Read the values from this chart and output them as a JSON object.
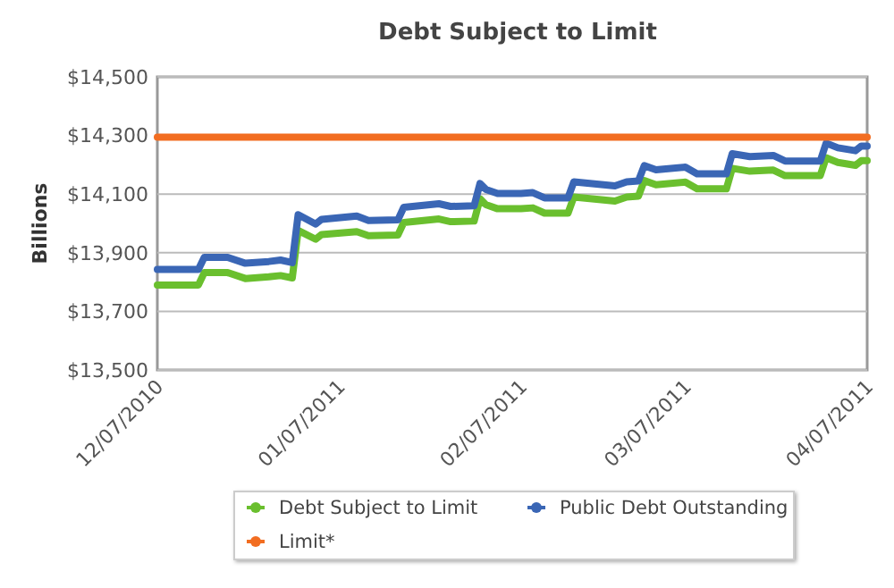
{
  "chart_data": {
    "type": "line",
    "title": "Debt Subject to Limit",
    "ylabel": "Billions",
    "xlim": [
      "2010-12-07",
      "2011-04-07"
    ],
    "xticks": [
      {
        "value": "2010-12-07",
        "label": "12/07/2010"
      },
      {
        "value": "2011-01-07",
        "label": "01/07/2011"
      },
      {
        "value": "2011-02-07",
        "label": "02/07/2011"
      },
      {
        "value": "2011-03-07",
        "label": "03/07/2011"
      },
      {
        "value": "2011-04-07",
        "label": "04/07/2011"
      }
    ],
    "ylim": [
      13500,
      14500
    ],
    "yticks": [
      {
        "value": 13500,
        "label": "$13,500"
      },
      {
        "value": 13700,
        "label": "$13,700"
      },
      {
        "value": 13900,
        "label": "$13,900"
      },
      {
        "value": 14100,
        "label": "$14,100"
      },
      {
        "value": 14300,
        "label": "$14,300"
      },
      {
        "value": 14500,
        "label": "$14,500"
      }
    ],
    "grid": "y",
    "legend": "bottom",
    "marker": "none",
    "line_style": "solid",
    "series": [
      {
        "name": "Debt Subject to Limit",
        "color": "#6abf2e",
        "x": [
          "2010-12-07",
          "2010-12-14",
          "2010-12-15",
          "2010-12-19",
          "2010-12-22",
          "2010-12-26",
          "2010-12-28",
          "2010-12-30",
          "2010-12-31",
          "2011-01-03",
          "2011-01-04",
          "2011-01-10",
          "2011-01-12",
          "2011-01-17",
          "2011-01-18",
          "2011-01-24",
          "2011-01-26",
          "2011-01-30",
          "2011-01-31",
          "2011-02-01",
          "2011-02-03",
          "2011-02-07",
          "2011-02-09",
          "2011-02-11",
          "2011-02-15",
          "2011-02-16",
          "2011-02-23",
          "2011-02-25",
          "2011-02-27",
          "2011-02-28",
          "2011-03-02",
          "2011-03-07",
          "2011-03-09",
          "2011-03-14",
          "2011-03-15",
          "2011-03-18",
          "2011-03-22",
          "2011-03-24",
          "2011-03-30",
          "2011-03-31",
          "2011-04-02",
          "2011-04-05",
          "2011-04-06",
          "2011-04-07"
        ],
        "values": [
          13790,
          13790,
          13832,
          13832,
          13812,
          13818,
          13822,
          13814,
          13976,
          13946,
          13962,
          13972,
          13958,
          13960,
          14003,
          14015,
          14006,
          14008,
          14084,
          14064,
          14050,
          14050,
          14053,
          14035,
          14035,
          14090,
          14076,
          14090,
          14093,
          14146,
          14132,
          14141,
          14118,
          14118,
          14188,
          14178,
          14182,
          14163,
          14163,
          14224,
          14208,
          14198,
          14214,
          14214
        ]
      },
      {
        "name": "Public Debt Outstanding",
        "color": "#3a66b5",
        "x": [
          "2010-12-07",
          "2010-12-14",
          "2010-12-15",
          "2010-12-19",
          "2010-12-22",
          "2010-12-26",
          "2010-12-28",
          "2010-12-30",
          "2010-12-31",
          "2011-01-03",
          "2011-01-04",
          "2011-01-10",
          "2011-01-12",
          "2011-01-17",
          "2011-01-18",
          "2011-01-24",
          "2011-01-26",
          "2011-01-30",
          "2011-01-31",
          "2011-02-01",
          "2011-02-03",
          "2011-02-07",
          "2011-02-09",
          "2011-02-11",
          "2011-02-15",
          "2011-02-16",
          "2011-02-23",
          "2011-02-25",
          "2011-02-27",
          "2011-02-28",
          "2011-03-02",
          "2011-03-07",
          "2011-03-09",
          "2011-03-14",
          "2011-03-15",
          "2011-03-18",
          "2011-03-22",
          "2011-03-24",
          "2011-03-30",
          "2011-03-31",
          "2011-04-02",
          "2011-04-05",
          "2011-04-06",
          "2011-04-07"
        ],
        "values": [
          13843,
          13843,
          13884,
          13884,
          13864,
          13870,
          13875,
          13866,
          14030,
          13998,
          14014,
          14025,
          14010,
          14012,
          14055,
          14067,
          14058,
          14060,
          14136,
          14116,
          14102,
          14102,
          14105,
          14087,
          14087,
          14142,
          14128,
          14142,
          14145,
          14197,
          14183,
          14192,
          14169,
          14169,
          14238,
          14228,
          14232,
          14213,
          14213,
          14274,
          14258,
          14248,
          14264,
          14264
        ]
      },
      {
        "name": "Limit*",
        "color": "#f26d21",
        "x": [
          "2010-12-07",
          "2011-04-07"
        ],
        "values": [
          14294,
          14294
        ]
      }
    ]
  }
}
